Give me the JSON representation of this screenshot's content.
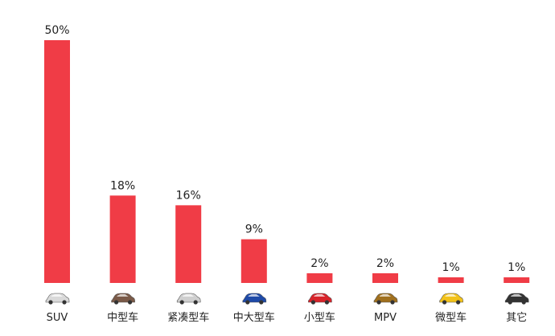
{
  "chart_data": {
    "type": "bar",
    "categories": [
      "SUV",
      "中型车",
      "紧凑型车",
      "中大型车",
      "小型车",
      "MPV",
      "微型车",
      "其它"
    ],
    "values": [
      50,
      18,
      16,
      9,
      2,
      2,
      1,
      1
    ],
    "value_labels": [
      "50%",
      "18%",
      "16%",
      "9%",
      "2%",
      "2%",
      "1%",
      "1%"
    ],
    "title": "",
    "xlabel": "",
    "ylabel": "",
    "ylim": [
      0,
      50
    ],
    "grid": false,
    "legend": "none",
    "bar_color": "#f03c46",
    "car_icons": [
      {
        "name": "suv-car-icon",
        "color": "#d9d9d9"
      },
      {
        "name": "midsize-car-icon",
        "color": "#7a5a48"
      },
      {
        "name": "compact-car-icon",
        "color": "#cfcfcf"
      },
      {
        "name": "large-car-icon",
        "color": "#1e4aa8"
      },
      {
        "name": "small-car-icon",
        "color": "#d8232a"
      },
      {
        "name": "mpv-car-icon",
        "color": "#a0701e"
      },
      {
        "name": "mini-car-icon",
        "color": "#f2c21a"
      },
      {
        "name": "other-car-icon",
        "color": "#333333"
      }
    ]
  }
}
